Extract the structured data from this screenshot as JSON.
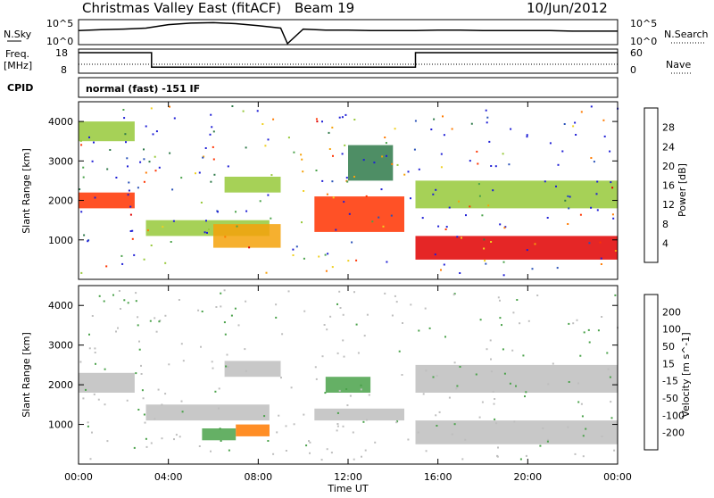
{
  "header": {
    "title": "Christmas Valley East (fitACF)",
    "beam": "Beam 19",
    "date": "10/Jun/2012"
  },
  "strip": {
    "nsky": {
      "label": "N.Sky",
      "ticks": [
        "10^5",
        "10^0"
      ]
    },
    "nsearch": {
      "label": "N.Search",
      "ticks": [
        "10^5",
        "10^0"
      ]
    },
    "freq": {
      "label1": "Freq.",
      "label2": "[MHz]",
      "ticks": [
        "18",
        "8"
      ]
    },
    "nave": {
      "label": "Nave",
      "ticks": [
        "60",
        "0"
      ]
    },
    "cpid": {
      "label": "CPID",
      "text": "normal (fast) -151 IF"
    }
  },
  "colors": {
    "power": [
      "#1f1fd6",
      "#2a52b8",
      "#2f7a4a",
      "#4aa24a",
      "#97c93a",
      "#f0d020",
      "#f5a20a",
      "#ff7a00",
      "#ff3300",
      "#e00000"
    ],
    "velocity": [
      "#1f1fd6",
      "#2a52b8",
      "#2f7a4a",
      "#4aa24a",
      "#bebebe",
      "#bebebe",
      "#f5a20a",
      "#ff7a00",
      "#ff3300",
      "#e00000"
    ],
    "ground_scatter": "#bebebe"
  },
  "chart_data": [
    {
      "type": "line",
      "series": [
        {
          "values_x": [
            0,
            1,
            2,
            3,
            4,
            5,
            6,
            7,
            8,
            9,
            9.3,
            10,
            11,
            12,
            13,
            14,
            15,
            16,
            17,
            18,
            19,
            20,
            21,
            22,
            23,
            24
          ],
          "values": [
            2.8,
            3.0,
            3.1,
            3.3,
            4.0,
            4.3,
            4.4,
            4.2,
            3.8,
            3.3,
            0.2,
            3.1,
            2.9,
            2.9,
            2.8,
            2.8,
            2.8,
            2.9,
            2.9,
            2.8,
            2.8,
            2.8,
            2.8,
            2.7,
            2.7,
            2.7
          ]
        }
      ]
    },
    {
      "type": "line",
      "series": [
        {
          "values_x": [
            0,
            3.25,
            3.25,
            15.0,
            15.0,
            24
          ],
          "values": [
            16.5,
            16.5,
            10.5,
            10.5,
            16.5,
            16.5
          ]
        }
      ]
    },
    {
      "type": "heatmap",
      "ylabel": "Slant Range [km]",
      "ylim": [
        0,
        4500
      ],
      "yticks": [
        "1000",
        "2000",
        "3000",
        "4000"
      ],
      "colorbar": {
        "label": "Power [dB]",
        "ticks": [
          "4",
          "8",
          "12",
          "16",
          "20",
          "24",
          "28"
        ],
        "range": [
          0,
          30
        ]
      },
      "bands": [
        {
          "t": [
            0.0,
            2.5
          ],
          "r": [
            1800,
            2200
          ],
          "v": 24
        },
        {
          "t": [
            0.0,
            2.5
          ],
          "r": [
            3500,
            4000
          ],
          "v": 12
        },
        {
          "t": [
            3.0,
            8.5
          ],
          "r": [
            1100,
            1500
          ],
          "v": 14
        },
        {
          "t": [
            6.0,
            9.0
          ],
          "r": [
            800,
            1400
          ],
          "v": 18
        },
        {
          "t": [
            6.5,
            9.0
          ],
          "r": [
            2200,
            2600
          ],
          "v": 12
        },
        {
          "t": [
            10.5,
            14.5
          ],
          "r": [
            1200,
            2100
          ],
          "v": 24
        },
        {
          "t": [
            15.0,
            24.0
          ],
          "r": [
            500,
            1100
          ],
          "v": 28
        },
        {
          "t": [
            15.0,
            24.0
          ],
          "r": [
            1800,
            2500
          ],
          "v": 14
        },
        {
          "t": [
            12.0,
            14.0
          ],
          "r": [
            2500,
            3400
          ],
          "v": 6
        }
      ]
    },
    {
      "type": "heatmap",
      "xlabel": "Time UT",
      "ylabel": "Slant Range [km]",
      "ylim": [
        0,
        4500
      ],
      "yticks": [
        "1000",
        "2000",
        "3000",
        "4000"
      ],
      "xticks": [
        "00:00",
        "04:00",
        "08:00",
        "12:00",
        "16:00",
        "20:00",
        "00:00"
      ],
      "colorbar": {
        "label": "Velocity [m s^-1]",
        "ticks": [
          "200",
          "100",
          "50",
          "15",
          "-15",
          "-50",
          "-100",
          "-200"
        ]
      },
      "bands": [
        {
          "t": [
            0.0,
            2.5
          ],
          "r": [
            1800,
            2300
          ],
          "v": 0
        },
        {
          "t": [
            3.0,
            8.5
          ],
          "r": [
            1100,
            1500
          ],
          "v": 0
        },
        {
          "t": [
            6.5,
            9.0
          ],
          "r": [
            2200,
            2600
          ],
          "v": 0
        },
        {
          "t": [
            5.5,
            7.0
          ],
          "r": [
            600,
            900
          ],
          "v": 40
        },
        {
          "t": [
            7.0,
            8.5
          ],
          "r": [
            700,
            1000
          ],
          "v": -80
        },
        {
          "t": [
            11.0,
            13.0
          ],
          "r": [
            1800,
            2200
          ],
          "v": 40
        },
        {
          "t": [
            15.0,
            24.0
          ],
          "r": [
            500,
            1100
          ],
          "v": 0
        },
        {
          "t": [
            15.0,
            24.0
          ],
          "r": [
            1800,
            2500
          ],
          "v": 0
        },
        {
          "t": [
            10.5,
            14.5
          ],
          "r": [
            1100,
            1400
          ],
          "v": 0
        }
      ]
    }
  ]
}
